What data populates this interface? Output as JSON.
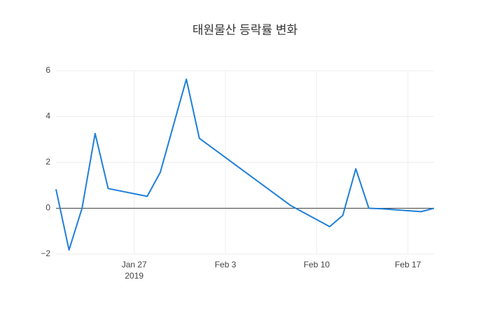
{
  "chart_data": {
    "type": "line",
    "title": "태원물산 등락률 변화",
    "x": [
      "2019-01-21",
      "2019-01-22",
      "2019-01-23",
      "2019-01-24",
      "2019-01-25",
      "2019-01-28",
      "2019-01-29",
      "2019-01-31",
      "2019-02-01",
      "2019-02-08",
      "2019-02-11",
      "2019-02-12",
      "2019-02-13",
      "2019-02-14",
      "2019-02-15",
      "2019-02-18",
      "2019-02-19"
    ],
    "series": [
      {
        "color": "#1f7fd8",
        "values": [
          0.83,
          -1.82,
          0,
          3.26,
          0.86,
          0.52,
          1.57,
          5.63,
          3.05,
          0.12,
          -0.8,
          -0.31,
          1.72,
          0,
          -0.02,
          -0.15,
          0
        ]
      }
    ],
    "xlim": [
      "2019-01-21",
      "2019-02-19"
    ],
    "xticks": [
      {
        "value": "2019-01-27",
        "label": "Jan 27",
        "sublabel": "2019"
      },
      {
        "value": "2019-02-03",
        "label": "Feb 3"
      },
      {
        "value": "2019-02-10",
        "label": "Feb 10"
      },
      {
        "value": "2019-02-17",
        "label": "Feb 17"
      }
    ],
    "ylim": [
      -2,
      6
    ],
    "yticks": [
      {
        "value": -2,
        "label": "−2"
      },
      0,
      2,
      4,
      6
    ],
    "grid": true,
    "zeroline": true
  }
}
